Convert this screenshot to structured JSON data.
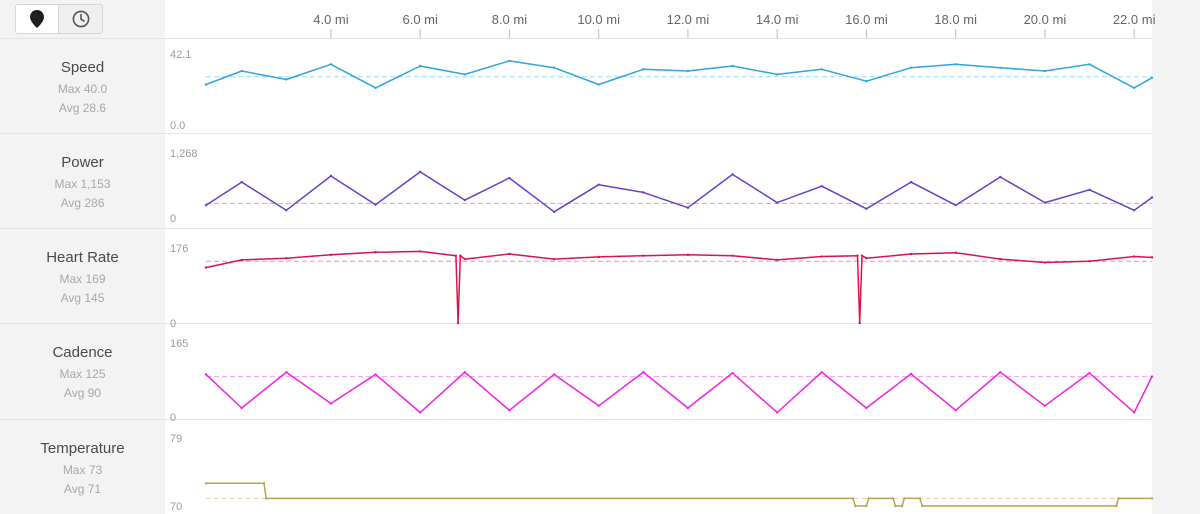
{
  "toolbar": {
    "buttons": [
      {
        "name": "map-pin-toggle",
        "icon": "map-pin-icon",
        "active": true
      },
      {
        "name": "clock-toggle",
        "icon": "clock-icon",
        "active": false
      }
    ]
  },
  "x_axis": {
    "unit": "mi",
    "range": [
      1.2,
      22.4
    ],
    "ticks": [
      4.0,
      6.0,
      8.0,
      10.0,
      12.0,
      14.0,
      16.0,
      18.0,
      20.0,
      22.0
    ],
    "tick_labels": [
      "4.0 mi",
      "6.0 mi",
      "8.0 mi",
      "10.0 mi",
      "12.0 mi",
      "14.0 mi",
      "16.0 mi",
      "18.0 mi",
      "20.0 mi",
      "22.0 mi"
    ]
  },
  "rows": [
    {
      "title": "Speed",
      "max_label": "Max 40.0",
      "avg_label": "Avg 28.6",
      "ymax_label": "42.1",
      "ymin_label": "0.0"
    },
    {
      "title": "Power",
      "max_label": "Max 1,153",
      "avg_label": "Avg 286",
      "ymax_label": "1,268",
      "ymin_label": "0"
    },
    {
      "title": "Heart Rate",
      "max_label": "Max 169",
      "avg_label": "Avg 145",
      "ymax_label": "176",
      "ymin_label": "0"
    },
    {
      "title": "Cadence",
      "max_label": "Max 125",
      "avg_label": "Avg 90",
      "ymax_label": "165",
      "ymin_label": "0"
    },
    {
      "title": "Temperature",
      "max_label": "Max 73",
      "avg_label": "Avg 71",
      "ymax_label": "79",
      "ymin_label": "70"
    }
  ],
  "chart_data": [
    {
      "type": "line",
      "xlabel": "",
      "ylabel": "",
      "series": [
        {
          "name": "Speed",
          "color": "#2ea6da",
          "max": 40.0,
          "avg": 28.6,
          "ylim": [
            0.0,
            42.1
          ],
          "x": [
            1.2,
            2.0,
            3.0,
            4.0,
            5.0,
            6.0,
            7.0,
            8.0,
            9.0,
            10.0,
            11.0,
            12.0,
            13.0,
            14.0,
            15.0,
            16.0,
            17.0,
            18.0,
            19.0,
            20.0,
            21.0,
            22.0,
            22.4
          ],
          "values": [
            24,
            32,
            27,
            36,
            22,
            35,
            30,
            38,
            34,
            24,
            33,
            32,
            35,
            30,
            33,
            26,
            34,
            36,
            34,
            32,
            36,
            22,
            28
          ]
        }
      ]
    },
    {
      "type": "line",
      "xlabel": "",
      "ylabel": "",
      "series": [
        {
          "name": "Power",
          "color": "#6a3fc8",
          "max": 1153,
          "avg": 286,
          "ylim": [
            0,
            1268
          ],
          "x": [
            1.2,
            2.0,
            3.0,
            4.0,
            5.0,
            6.0,
            7.0,
            8.0,
            9.0,
            10.0,
            11.0,
            12.0,
            13.0,
            14.0,
            15.0,
            16.0,
            17.0,
            18.0,
            19.0,
            20.0,
            21.0,
            22.0,
            22.4
          ],
          "values": [
            250,
            700,
            150,
            820,
            260,
            900,
            350,
            780,
            120,
            650,
            500,
            200,
            850,
            300,
            620,
            180,
            700,
            250,
            800,
            300,
            550,
            150,
            400
          ]
        }
      ]
    },
    {
      "type": "line",
      "xlabel": "",
      "ylabel": "",
      "series": [
        {
          "name": "Heart Rate",
          "color": "#d8154a",
          "max": 169,
          "avg": 145,
          "ylim": [
            0,
            176
          ],
          "x": [
            1.2,
            2.0,
            3.0,
            4.0,
            5.0,
            6.0,
            6.8,
            6.85,
            6.9,
            7.0,
            8.0,
            9.0,
            10.0,
            11.0,
            12.0,
            13.0,
            14.0,
            15.0,
            15.8,
            15.85,
            15.9,
            16.0,
            17.0,
            18.0,
            19.0,
            20.0,
            21.0,
            22.0,
            22.4
          ],
          "values": [
            130,
            148,
            152,
            160,
            166,
            168,
            158,
            0,
            158,
            150,
            162,
            150,
            155,
            158,
            160,
            158,
            148,
            156,
            158,
            0,
            158,
            152,
            162,
            165,
            150,
            142,
            145,
            156,
            154
          ]
        }
      ]
    },
    {
      "type": "line",
      "xlabel": "",
      "ylabel": "",
      "series": [
        {
          "name": "Cadence",
          "color": "#f020e0",
          "max": 125,
          "avg": 90,
          "ylim": [
            0,
            165
          ],
          "x": [
            1.2,
            2.0,
            3.0,
            4.0,
            5.0,
            6.0,
            7.0,
            8.0,
            9.0,
            10.0,
            11.0,
            12.0,
            13.0,
            14.0,
            15.0,
            16.0,
            17.0,
            18.0,
            19.0,
            20.0,
            21.0,
            22.0,
            22.4
          ],
          "values": [
            95,
            20,
            100,
            30,
            95,
            10,
            100,
            15,
            95,
            25,
            100,
            20,
            98,
            10,
            100,
            20,
            96,
            15,
            100,
            25,
            98,
            10,
            90
          ]
        }
      ]
    },
    {
      "type": "line",
      "xlabel": "",
      "ylabel": "",
      "series": [
        {
          "name": "Temperature",
          "color": "#b7a44f",
          "max": 73,
          "avg": 71,
          "ylim": [
            70,
            79
          ],
          "x": [
            1.2,
            2.5,
            2.55,
            15.7,
            15.75,
            16.0,
            16.05,
            16.6,
            16.65,
            16.8,
            16.85,
            17.2,
            17.25,
            21.6,
            21.65,
            22.4
          ],
          "values": [
            73,
            73,
            71,
            71,
            70,
            70,
            71,
            71,
            70,
            70,
            71,
            71,
            70,
            70,
            71,
            71
          ]
        }
      ]
    }
  ]
}
